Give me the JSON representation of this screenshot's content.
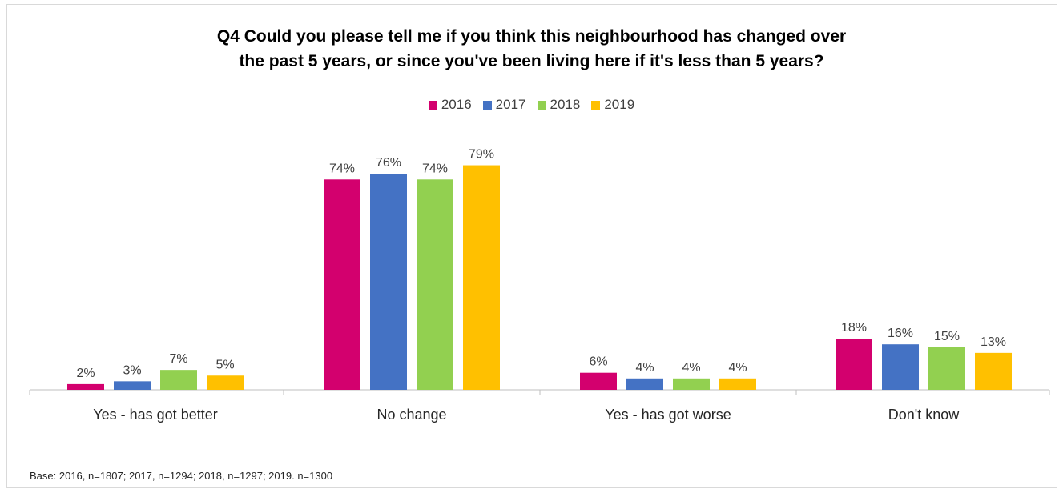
{
  "colors": {
    "2016": "#d3006e",
    "2017": "#4472c4",
    "2018": "#92d050",
    "2019": "#ffc000",
    "axis": "#bfbfbf",
    "label": "#404040"
  },
  "chart_data": {
    "type": "bar",
    "title_lines": [
      "Q4 Could you please tell me if you think this neighbourhood has changed over",
      "the past 5 years, or since you've been living here if it's less than 5 years?"
    ],
    "categories": [
      "Yes - has got better",
      "No change",
      "Yes - has got worse",
      "Don't know"
    ],
    "series": [
      {
        "name": "2016",
        "values": [
          2,
          74,
          6,
          18
        ],
        "labels": [
          "2%",
          "74%",
          "6%",
          "18%"
        ]
      },
      {
        "name": "2017",
        "values": [
          3,
          76,
          4,
          16
        ],
        "labels": [
          "3%",
          "76%",
          "4%",
          "16%"
        ]
      },
      {
        "name": "2018",
        "values": [
          7,
          74,
          4,
          15
        ],
        "labels": [
          "7%",
          "74%",
          "4%",
          "15%"
        ]
      },
      {
        "name": "2019",
        "values": [
          5,
          79,
          4,
          13
        ],
        "labels": [
          "5%",
          "79%",
          "4%",
          "13%"
        ]
      }
    ],
    "ylim": [
      0,
      100
    ],
    "legend_position": "top",
    "grid": false
  },
  "footnote": "Base: 2016, n=1807; 2017, n=1294; 2018, n=1297; 2019. n=1300"
}
